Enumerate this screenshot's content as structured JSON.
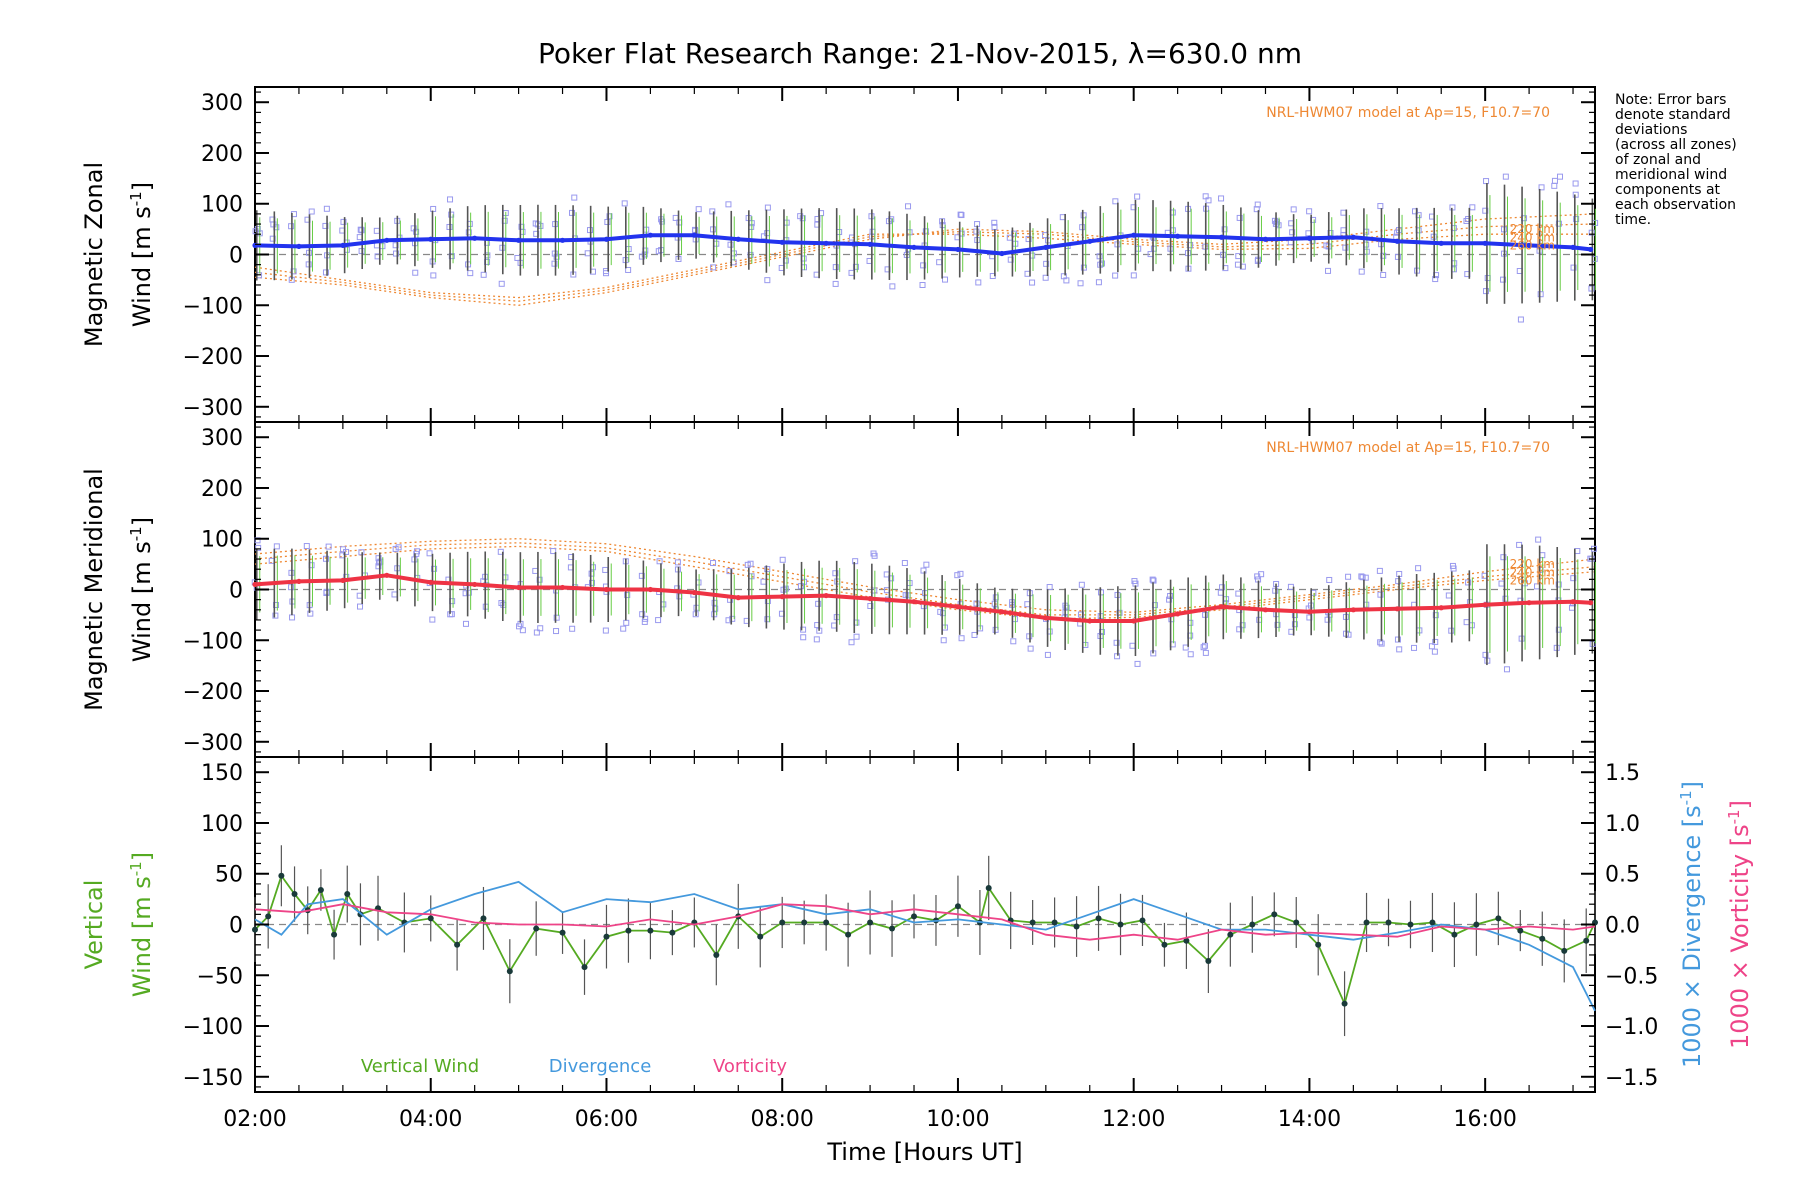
{
  "title": "Poker Flat Research Range: 21-Nov-2015, λ=630.0 nm",
  "note_lines": [
    "Note: Error bars",
    "denote standard",
    "deviations",
    "(across all zones)",
    "of zonal and",
    "meridional wind",
    "components at",
    "each observation",
    "time."
  ],
  "model_label": "NRL-HWM07 model at Ap=15, F10.7=70",
  "altitude_labels": [
    "220 km",
    "240 km",
    "260 km"
  ],
  "x_axis": {
    "label": "Time [Hours UT]",
    "ticks": [
      "02:00",
      "04:00",
      "06:00",
      "08:00",
      "10:00",
      "12:00",
      "14:00",
      "16:00"
    ]
  },
  "legend_lower": [
    "Vertical Wind",
    "Divergence",
    "Vorticity"
  ],
  "colors": {
    "zonal": "#2233ee",
    "meridional": "#ee3344",
    "vertical": "#55aa22",
    "divergence": "#4499dd",
    "vorticity": "#ee4488",
    "model": "#ee8833",
    "zone_points": "#9999ee",
    "error_bars": "#555555"
  },
  "chart_data": [
    {
      "type": "line",
      "panel": "zonal",
      "ylabel_line1": "Magnetic Zonal",
      "ylabel_line2": "Wind [m s",
      "ylabel_sup": "-1",
      "ylabel_end": "]",
      "ylim": [
        -330,
        330
      ],
      "yticks": [
        "300",
        "200",
        "100",
        "0",
        "−100",
        "−200",
        "−300"
      ],
      "xlim_hours": [
        2.0,
        17.25
      ],
      "series": [
        {
          "x": [
            2.0,
            2.5,
            3.0,
            3.5,
            4.0,
            4.5,
            5.0,
            5.5,
            6.0,
            6.5,
            7.0,
            7.5,
            8.0,
            8.5,
            9.0,
            9.5,
            10.0,
            10.5,
            11.0,
            11.5,
            12.0,
            12.5,
            13.0,
            13.5,
            14.0,
            14.5,
            15.0,
            15.5,
            16.0,
            16.5,
            17.0,
            17.2
          ],
          "values": [
            18,
            16,
            18,
            28,
            30,
            32,
            28,
            28,
            30,
            38,
            38,
            30,
            24,
            22,
            20,
            14,
            10,
            2,
            14,
            26,
            38,
            36,
            34,
            30,
            32,
            34,
            26,
            22,
            22,
            18,
            14,
            10
          ]
        }
      ]
    },
    {
      "type": "line",
      "panel": "meridional",
      "ylabel_line1": "Magnetic Meridional",
      "ylabel_line2": "Wind [m s",
      "ylabel_sup": "-1",
      "ylabel_end": "]",
      "ylim": [
        -330,
        330
      ],
      "yticks": [
        "300",
        "200",
        "100",
        "0",
        "−100",
        "−200",
        "−300"
      ],
      "xlim_hours": [
        2.0,
        17.25
      ],
      "series": [
        {
          "x": [
            2.0,
            2.5,
            3.0,
            3.5,
            4.0,
            4.5,
            5.0,
            5.5,
            6.0,
            6.5,
            7.0,
            7.5,
            8.0,
            8.5,
            9.0,
            9.5,
            10.0,
            10.5,
            11.0,
            11.5,
            12.0,
            12.5,
            13.0,
            13.5,
            14.0,
            14.5,
            15.0,
            15.5,
            16.0,
            16.5,
            17.0,
            17.2
          ],
          "values": [
            10,
            16,
            18,
            28,
            14,
            10,
            4,
            4,
            0,
            0,
            -6,
            -16,
            -14,
            -12,
            -18,
            -24,
            -34,
            -44,
            -56,
            -62,
            -62,
            -48,
            -34,
            -40,
            -44,
            -40,
            -38,
            -36,
            -30,
            -26,
            -24,
            -26
          ]
        }
      ]
    },
    {
      "type": "line",
      "panel": "vertical",
      "ylabel_line1": "Vertical",
      "ylabel_line2": "Wind [m s",
      "ylabel_sup": "-1",
      "ylabel_end": "]",
      "ylim": [
        -165,
        165
      ],
      "yticks": [
        "150",
        "100",
        "50",
        "0",
        "−50",
        "−100",
        "−150"
      ],
      "y2label_a": "1000 × Divergence [s",
      "y2label_b": "1000 × Vorticity [s",
      "y2label_sup": "-1",
      "y2label_end": "]",
      "y2lim": [
        -1.65,
        1.65
      ],
      "y2ticks": [
        "1.5",
        "1.0",
        "0.5",
        "0.0",
        "−0.5",
        "−1.0",
        "−1.5"
      ],
      "xlim_hours": [
        2.0,
        17.25
      ],
      "series": [
        {
          "name": "Vertical Wind",
          "x": [
            2.0,
            2.15,
            2.3,
            2.45,
            2.6,
            2.75,
            2.9,
            3.05,
            3.2,
            3.4,
            3.7,
            4.0,
            4.3,
            4.6,
            4.9,
            5.2,
            5.5,
            5.75,
            6.0,
            6.25,
            6.5,
            6.75,
            7.0,
            7.25,
            7.5,
            7.75,
            8.0,
            8.25,
            8.5,
            8.75,
            9.0,
            9.25,
            9.5,
            9.75,
            10.0,
            10.25,
            10.35,
            10.6,
            10.85,
            11.1,
            11.35,
            11.6,
            11.85,
            12.1,
            12.35,
            12.6,
            12.85,
            13.1,
            13.35,
            13.6,
            13.85,
            14.1,
            14.4,
            14.65,
            14.9,
            15.15,
            15.4,
            15.65,
            15.9,
            16.15,
            16.4,
            16.65,
            16.9,
            17.15,
            17.25
          ],
          "values": [
            -5,
            8,
            48,
            30,
            14,
            34,
            -10,
            30,
            10,
            16,
            2,
            6,
            -20,
            6,
            -46,
            -4,
            -8,
            -42,
            -12,
            -6,
            -6,
            -8,
            2,
            -30,
            8,
            -12,
            2,
            2,
            2,
            -10,
            2,
            -4,
            8,
            4,
            18,
            2,
            36,
            4,
            2,
            2,
            -2,
            6,
            0,
            4,
            -20,
            -16,
            -36,
            -10,
            0,
            10,
            2,
            -20,
            -78,
            2,
            2,
            0,
            2,
            -10,
            0,
            6,
            -6,
            -14,
            -26,
            -16,
            2
          ]
        },
        {
          "name": "Divergence",
          "x": [
            2.0,
            2.3,
            2.6,
            3.0,
            3.5,
            4.0,
            4.5,
            5.0,
            5.5,
            6.0,
            6.5,
            7.0,
            7.5,
            8.0,
            8.5,
            9.0,
            9.5,
            10.0,
            10.5,
            11.0,
            11.5,
            12.0,
            12.5,
            13.0,
            13.5,
            14.0,
            14.5,
            15.0,
            15.5,
            16.0,
            16.5,
            17.0,
            17.25
          ],
          "values": [
            0.05,
            -0.1,
            0.2,
            0.25,
            -0.1,
            0.15,
            0.3,
            0.42,
            0.12,
            0.25,
            0.22,
            0.3,
            0.15,
            0.2,
            0.1,
            0.15,
            0.02,
            0.05,
            0.0,
            -0.05,
            0.1,
            0.25,
            0.1,
            -0.05,
            -0.05,
            -0.1,
            -0.15,
            -0.08,
            0.0,
            -0.05,
            -0.2,
            -0.42,
            -0.85
          ]
        },
        {
          "name": "Vorticity",
          "x": [
            2.0,
            2.5,
            3.0,
            3.5,
            4.0,
            4.5,
            5.0,
            5.5,
            6.0,
            6.5,
            7.0,
            7.5,
            8.0,
            8.5,
            9.0,
            9.5,
            10.0,
            10.5,
            11.0,
            11.5,
            12.0,
            12.5,
            13.0,
            13.5,
            14.0,
            14.5,
            15.0,
            15.5,
            16.0,
            16.5,
            17.0,
            17.25
          ],
          "values": [
            0.15,
            0.12,
            0.2,
            0.12,
            0.1,
            0.02,
            0.0,
            0.0,
            -0.02,
            0.05,
            0.0,
            0.08,
            0.2,
            0.18,
            0.1,
            0.15,
            0.1,
            0.05,
            -0.1,
            -0.15,
            -0.1,
            -0.15,
            -0.05,
            -0.1,
            -0.08,
            -0.1,
            -0.12,
            -0.02,
            -0.05,
            -0.02,
            -0.05,
            -0.02
          ]
        }
      ]
    }
  ]
}
